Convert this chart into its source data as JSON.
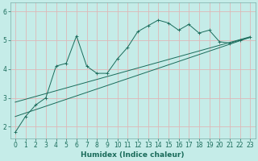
{
  "xlabel": "Humidex (Indice chaleur)",
  "xlim": [
    -0.5,
    23.5
  ],
  "ylim": [
    1.6,
    6.3
  ],
  "bg_color": "#c5ece8",
  "grid_color": "#ddb8b8",
  "line_color": "#1a6b5a",
  "line1_x": [
    0,
    1,
    2,
    3,
    4,
    5,
    6,
    7,
    8,
    9,
    10,
    11,
    12,
    13,
    14,
    15,
    16,
    17,
    18,
    19,
    20,
    21,
    22,
    23
  ],
  "line1_y": [
    1.8,
    2.35,
    2.75,
    3.0,
    4.1,
    4.2,
    5.15,
    4.1,
    3.85,
    3.85,
    4.35,
    4.75,
    5.3,
    5.5,
    5.7,
    5.6,
    5.35,
    5.55,
    5.25,
    5.35,
    4.95,
    4.9,
    5.0,
    5.1
  ],
  "line2_x": [
    0,
    23
  ],
  "line2_y": [
    2.35,
    5.1
  ],
  "line3_x": [
    0,
    23
  ],
  "line3_y": [
    2.85,
    5.12
  ],
  "xticks": [
    0,
    1,
    2,
    3,
    4,
    5,
    6,
    7,
    8,
    9,
    10,
    11,
    12,
    13,
    14,
    15,
    16,
    17,
    18,
    19,
    20,
    21,
    22,
    23
  ],
  "yticks": [
    2,
    3,
    4,
    5,
    6
  ],
  "font_color": "#1a6b5a",
  "tick_fontsize": 5.5,
  "label_fontsize": 6.5,
  "lw_main": 0.7,
  "lw_reg": 0.7,
  "marker_size": 2.2
}
